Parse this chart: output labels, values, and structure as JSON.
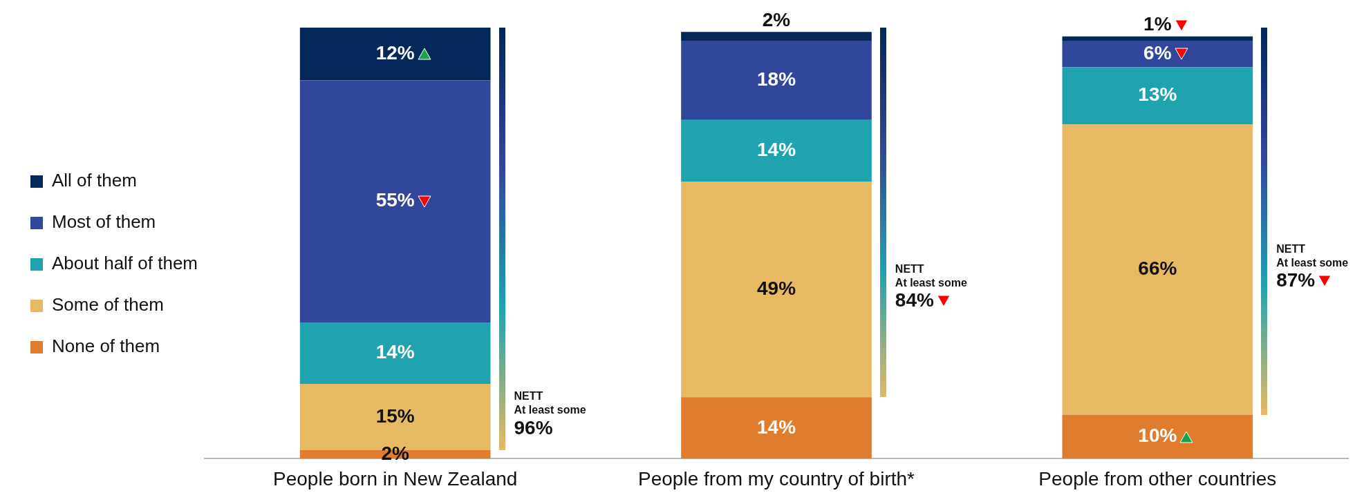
{
  "chart_data": {
    "type": "bar",
    "stacked": true,
    "categories": [
      "People born in New Zealand",
      "People from my country of birth*",
      "People from other countries"
    ],
    "series": [
      {
        "name": "None of them",
        "color": "#df7c2e",
        "values": [
          2,
          14,
          10
        ],
        "value_labels": [
          "2%",
          "14%",
          "10%"
        ]
      },
      {
        "name": "Some of them",
        "color": "#e6b962",
        "values": [
          15,
          49,
          66
        ],
        "value_labels": [
          "15%",
          "49%",
          "66%"
        ]
      },
      {
        "name": "About half of them",
        "color": "#20a3b0",
        "values": [
          14,
          14,
          13
        ],
        "value_labels": [
          "14%",
          "14%",
          "13%"
        ]
      },
      {
        "name": "Most of them",
        "color": "#30479b",
        "values": [
          55,
          18,
          6
        ],
        "value_labels": [
          "55%",
          "18%",
          "6%"
        ]
      },
      {
        "name": "All of them",
        "color": "#04275a",
        "values": [
          12,
          2,
          1
        ],
        "value_labels": [
          "12%",
          "2%",
          "1%"
        ]
      }
    ],
    "ylim": [
      0,
      98
    ],
    "tick_labels": "x",
    "grid": false,
    "legend": "left",
    "annotations": [
      "NETT\nAt least some\n96%",
      "NETT\nAt least some\n84%",
      "NETT\nAt least some\n87%"
    ]
  }
}
